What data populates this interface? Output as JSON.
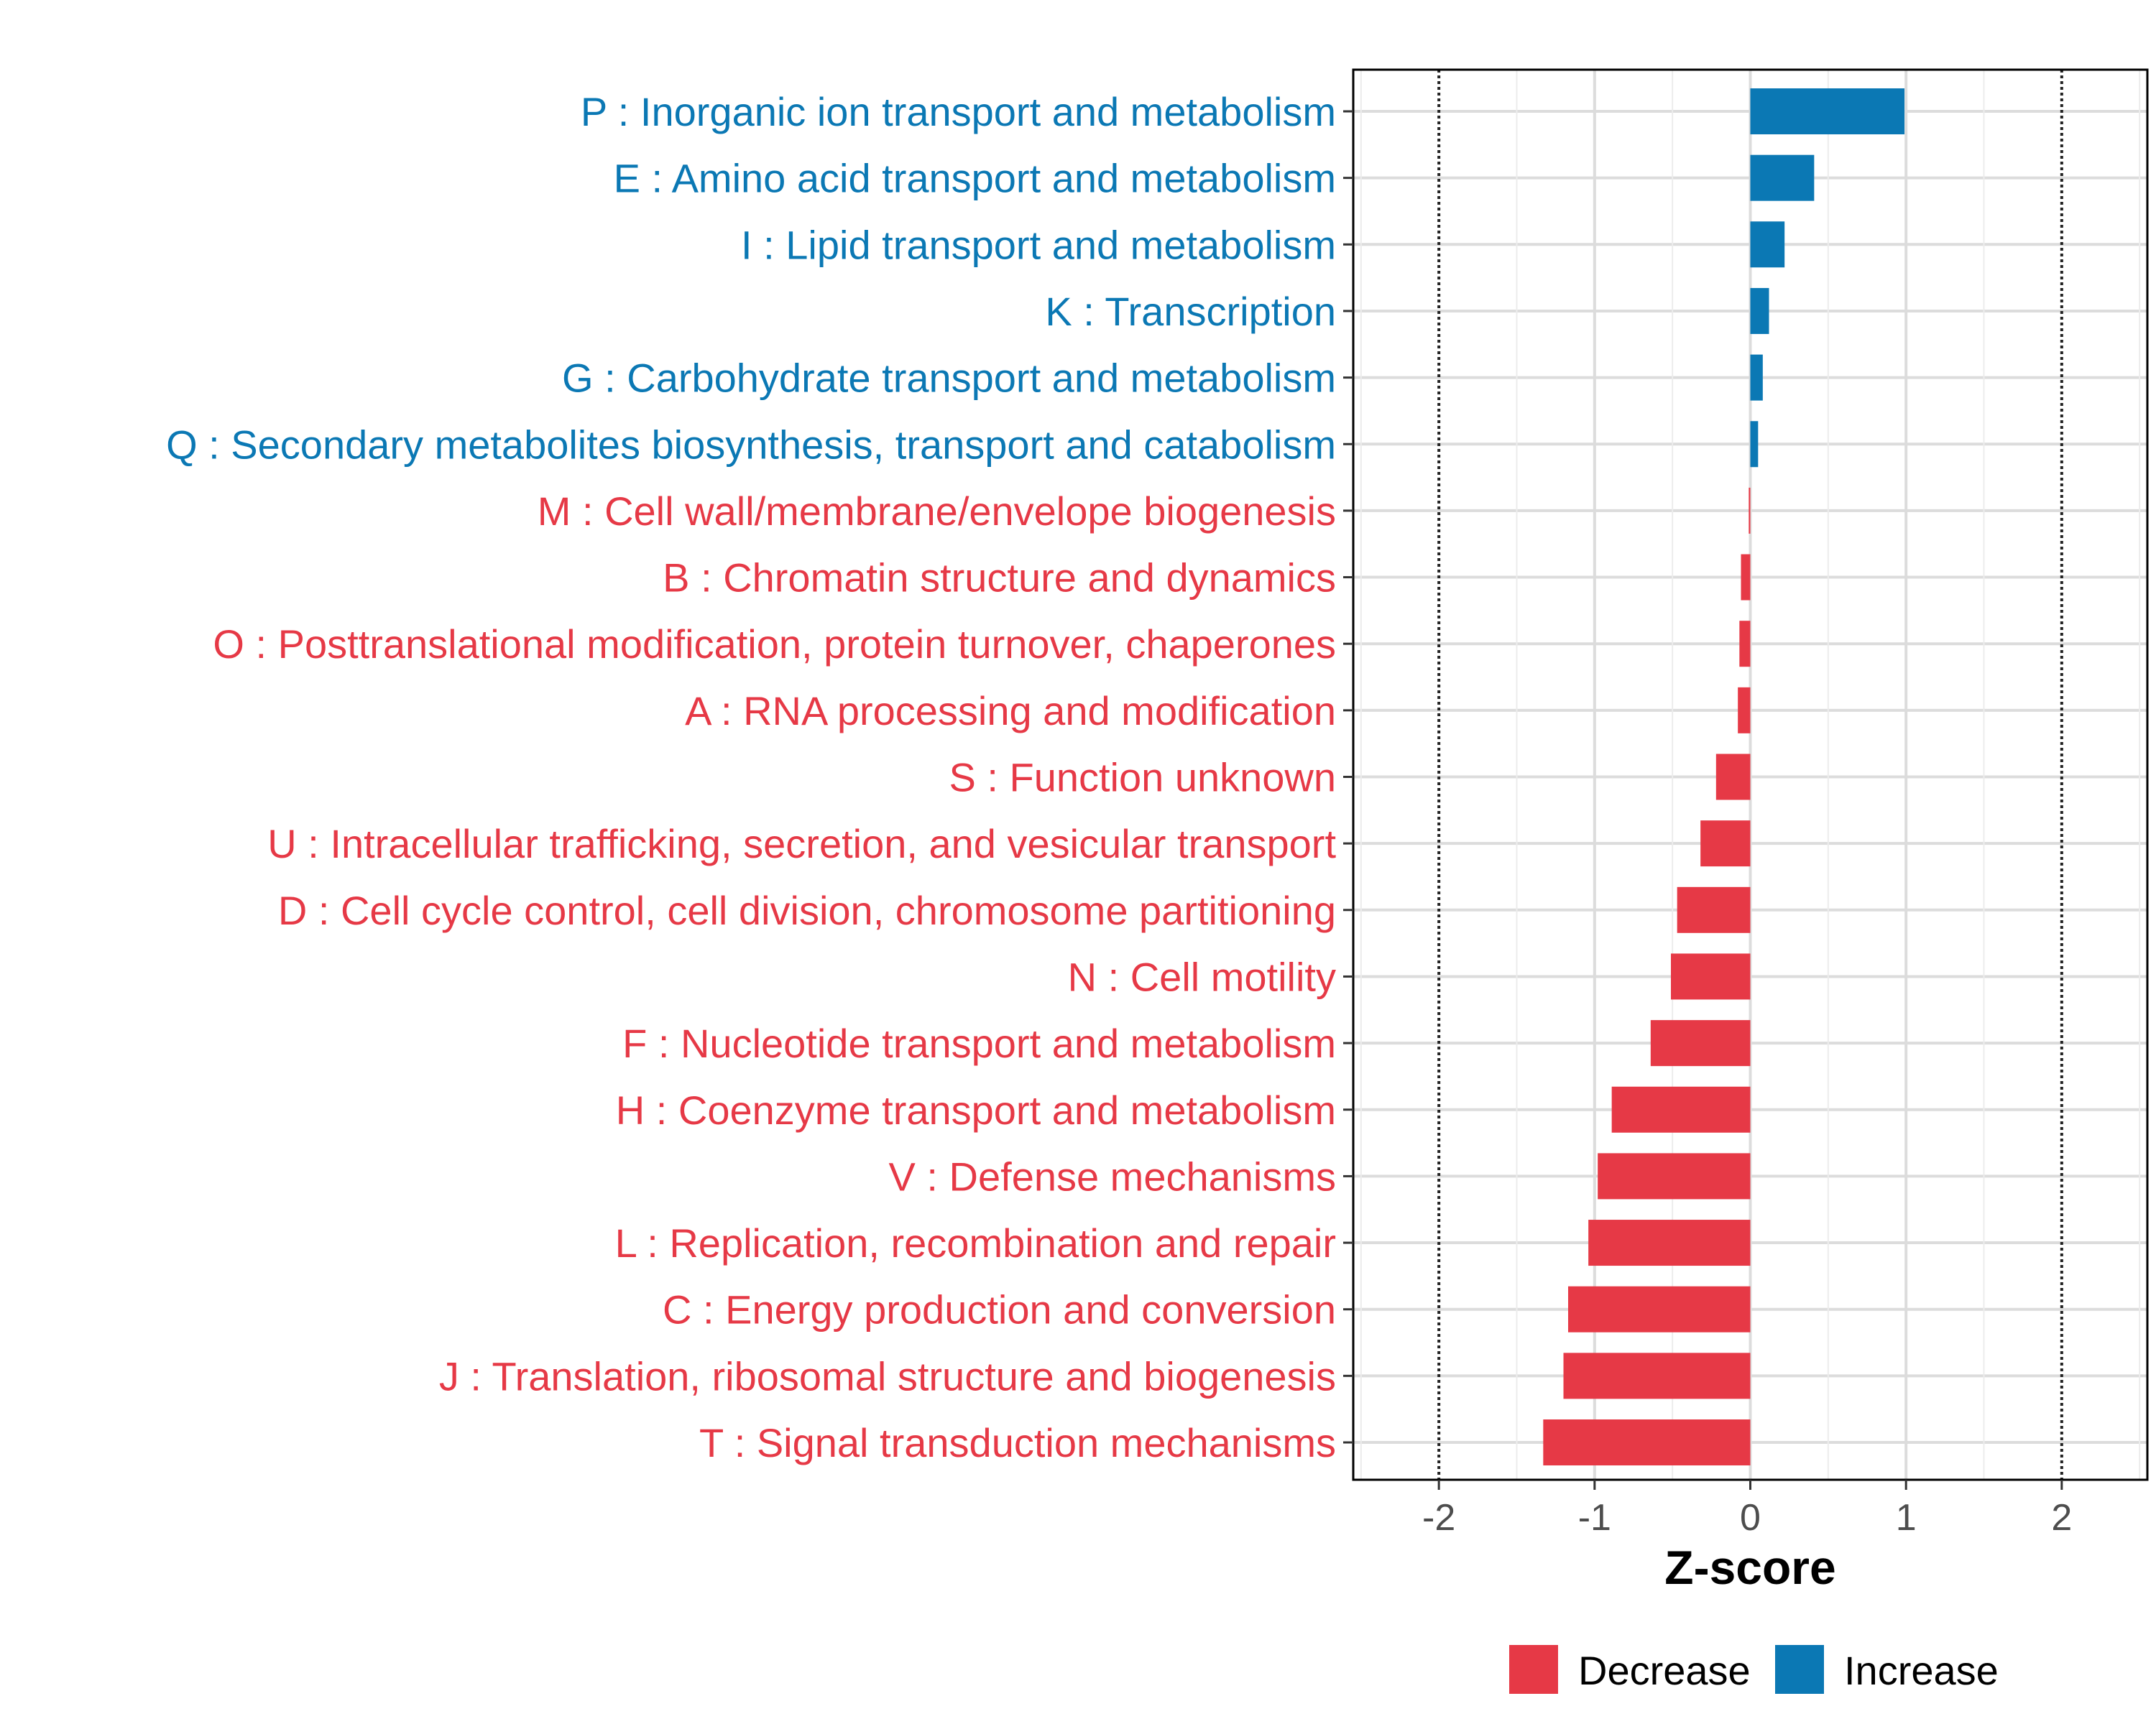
{
  "chart_data": {
    "type": "bar",
    "orientation": "horizontal",
    "title": "",
    "xlabel": "Z-score",
    "ylabel": "",
    "xlim": [
      -2.55,
      2.55
    ],
    "xticks": [
      -2,
      -1,
      0,
      1,
      2
    ],
    "xtick_labels": [
      "-2",
      "-1",
      "0",
      "1",
      "2"
    ],
    "reference_lines": [
      -2,
      2
    ],
    "grid": true,
    "legend_position": "bottom",
    "colors": {
      "Increase": "#0b78b4",
      "Decrease": "#e63946"
    },
    "categories": [
      "P : Inorganic ion transport and metabolism",
      "E : Amino acid transport and metabolism",
      "I : Lipid transport and metabolism",
      "K : Transcription",
      "G : Carbohydrate transport and metabolism",
      "Q : Secondary metabolites biosynthesis, transport and catabolism",
      "M : Cell wall/membrane/envelope biogenesis",
      "B : Chromatin structure and dynamics",
      "O : Posttranslational modification, protein turnover, chaperones",
      "A : RNA processing and modification",
      "S : Function unknown",
      "U : Intracellular trafficking, secretion, and vesicular transport",
      "D : Cell cycle control, cell division, chromosome partitioning",
      "N : Cell motility",
      "F : Nucleotide transport and metabolism",
      "H : Coenzyme transport and metabolism",
      "V : Defense mechanisms",
      "L : Replication, recombination and repair",
      "C : Energy production and conversion",
      "J : Translation, ribosomal structure and biogenesis",
      "T : Signal transduction mechanisms"
    ],
    "values": [
      0.99,
      0.41,
      0.22,
      0.12,
      0.08,
      0.05,
      -0.01,
      -0.06,
      -0.07,
      -0.08,
      -0.22,
      -0.32,
      -0.47,
      -0.51,
      -0.64,
      -0.89,
      -0.98,
      -1.04,
      -1.17,
      -1.2,
      -1.33
    ],
    "groups": [
      "Increase",
      "Increase",
      "Increase",
      "Increase",
      "Increase",
      "Increase",
      "Decrease",
      "Decrease",
      "Decrease",
      "Decrease",
      "Decrease",
      "Decrease",
      "Decrease",
      "Decrease",
      "Decrease",
      "Decrease",
      "Decrease",
      "Decrease",
      "Decrease",
      "Decrease",
      "Decrease"
    ],
    "legend": [
      "Decrease",
      "Increase"
    ]
  }
}
